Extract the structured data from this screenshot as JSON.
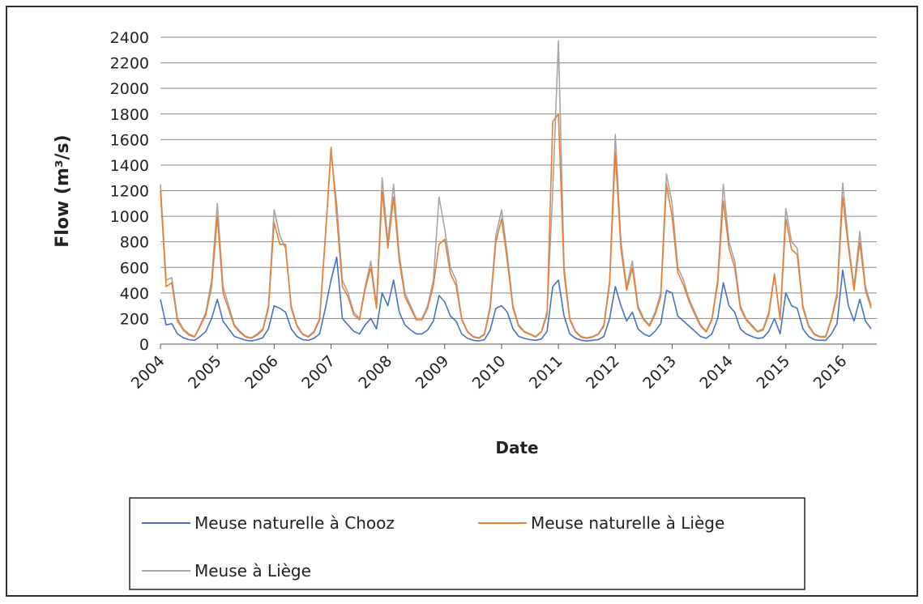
{
  "chart_data": {
    "type": "line",
    "y_label": "Flow (m³/s)",
    "x_label": "Date",
    "x": [
      2004,
      2004.1,
      2004.2,
      2004.3,
      2004.4,
      2004.5,
      2004.6,
      2004.7,
      2004.8,
      2004.9,
      2005,
      2005.1,
      2005.2,
      2005.3,
      2005.4,
      2005.5,
      2005.6,
      2005.7,
      2005.8,
      2005.9,
      2006,
      2006.1,
      2006.2,
      2006.3,
      2006.4,
      2006.5,
      2006.6,
      2006.7,
      2006.8,
      2006.9,
      2007,
      2007.1,
      2007.2,
      2007.3,
      2007.4,
      2007.5,
      2007.6,
      2007.7,
      2007.8,
      2007.9,
      2008,
      2008.1,
      2008.2,
      2008.3,
      2008.4,
      2008.5,
      2008.6,
      2008.7,
      2008.8,
      2008.9,
      2009,
      2009.1,
      2009.2,
      2009.3,
      2009.4,
      2009.5,
      2009.6,
      2009.7,
      2009.8,
      2009.9,
      2010,
      2010.1,
      2010.2,
      2010.3,
      2010.4,
      2010.5,
      2010.6,
      2010.7,
      2010.8,
      2010.9,
      2011,
      2011.1,
      2011.2,
      2011.3,
      2011.4,
      2011.5,
      2011.6,
      2011.7,
      2011.8,
      2011.9,
      2012,
      2012.1,
      2012.2,
      2012.3,
      2012.4,
      2012.5,
      2012.6,
      2012.7,
      2012.8,
      2012.9,
      2013,
      2013.1,
      2013.2,
      2013.3,
      2013.4,
      2013.5,
      2013.6,
      2013.7,
      2013.8,
      2013.9,
      2014,
      2014.1,
      2014.2,
      2014.3,
      2014.4,
      2014.5,
      2014.6,
      2014.7,
      2014.8,
      2014.9,
      2015,
      2015.1,
      2015.2,
      2015.3,
      2015.4,
      2015.5,
      2015.6,
      2015.7,
      2015.8,
      2015.9,
      2016,
      2016.1,
      2016.2,
      2016.3,
      2016.4,
      2016.5
    ],
    "series": [
      {
        "name": "Meuse naturelle à Chooz",
        "color": "#4472c4",
        "values": [
          350,
          150,
          160,
          80,
          50,
          35,
          30,
          60,
          100,
          200,
          350,
          180,
          120,
          60,
          45,
          30,
          25,
          35,
          50,
          120,
          300,
          280,
          250,
          120,
          60,
          35,
          30,
          45,
          80,
          280,
          500,
          680,
          200,
          150,
          100,
          80,
          150,
          200,
          120,
          400,
          300,
          500,
          250,
          150,
          110,
          80,
          80,
          110,
          180,
          380,
          330,
          220,
          180,
          80,
          45,
          30,
          25,
          35,
          110,
          280,
          300,
          250,
          120,
          60,
          45,
          35,
          30,
          40,
          100,
          450,
          500,
          220,
          80,
          45,
          30,
          25,
          30,
          35,
          60,
          200,
          450,
          300,
          180,
          250,
          120,
          80,
          60,
          100,
          160,
          420,
          400,
          220,
          180,
          140,
          100,
          60,
          45,
          80,
          200,
          480,
          300,
          250,
          120,
          80,
          60,
          45,
          50,
          100,
          200,
          80,
          400,
          300,
          280,
          120,
          60,
          35,
          30,
          30,
          80,
          160,
          580,
          300,
          180,
          350,
          180,
          120
        ]
      },
      {
        "name": "Meuse naturelle à Liège",
        "color": "#ed7d31",
        "values": [
          1200,
          450,
          480,
          180,
          110,
          70,
          55,
          140,
          230,
          450,
          1000,
          400,
          270,
          140,
          90,
          55,
          45,
          70,
          110,
          280,
          950,
          780,
          780,
          280,
          140,
          75,
          55,
          90,
          190,
          830,
          1540,
          1000,
          450,
          370,
          230,
          190,
          430,
          600,
          280,
          1200,
          750,
          1150,
          650,
          370,
          280,
          190,
          190,
          280,
          460,
          780,
          820,
          550,
          460,
          190,
          95,
          55,
          45,
          75,
          280,
          800,
          980,
          650,
          280,
          140,
          95,
          75,
          55,
          95,
          230,
          1740,
          1800,
          550,
          190,
          95,
          55,
          45,
          55,
          75,
          140,
          470,
          1500,
          740,
          420,
          600,
          280,
          190,
          140,
          230,
          370,
          1250,
          1000,
          560,
          460,
          330,
          230,
          140,
          95,
          190,
          470,
          1120,
          750,
          600,
          280,
          190,
          140,
          95,
          110,
          230,
          540,
          190,
          980,
          740,
          700,
          280,
          140,
          75,
          55,
          55,
          190,
          370,
          1150,
          760,
          420,
          800,
          420,
          280
        ]
      },
      {
        "name": "Meuse à Liège",
        "color": "#a5a5a5",
        "values": [
          1250,
          500,
          520,
          200,
          120,
          80,
          60,
          150,
          250,
          500,
          1100,
          450,
          300,
          150,
          100,
          60,
          50,
          80,
          120,
          300,
          1050,
          850,
          750,
          300,
          150,
          80,
          60,
          100,
          200,
          850,
          1500,
          1100,
          500,
          400,
          250,
          200,
          450,
          650,
          300,
          1300,
          800,
          1250,
          700,
          400,
          300,
          200,
          200,
          300,
          500,
          1150,
          900,
          600,
          500,
          200,
          100,
          60,
          50,
          80,
          300,
          850,
          1050,
          700,
          300,
          150,
          100,
          80,
          60,
          100,
          250,
          1200,
          2370,
          600,
          200,
          100,
          60,
          50,
          60,
          80,
          150,
          500,
          1640,
          800,
          450,
          650,
          300,
          200,
          150,
          250,
          400,
          1330,
          1100,
          600,
          500,
          350,
          250,
          150,
          100,
          200,
          500,
          1250,
          800,
          650,
          300,
          200,
          150,
          100,
          120,
          250,
          550,
          200,
          1060,
          800,
          750,
          300,
          150,
          80,
          60,
          60,
          200,
          400,
          1260,
          800,
          450,
          880,
          450,
          300
        ]
      }
    ],
    "xlim": [
      2004,
      2016.6
    ],
    "xticks": [
      2004,
      2005,
      2006,
      2007,
      2008,
      2009,
      2010,
      2011,
      2012,
      2013,
      2014,
      2015,
      2016
    ],
    "ylim": [
      0,
      2400
    ],
    "yticks": [
      0,
      200,
      400,
      600,
      800,
      1000,
      1200,
      1400,
      1600,
      1800,
      2000,
      2200,
      2400
    ],
    "grid": true
  }
}
